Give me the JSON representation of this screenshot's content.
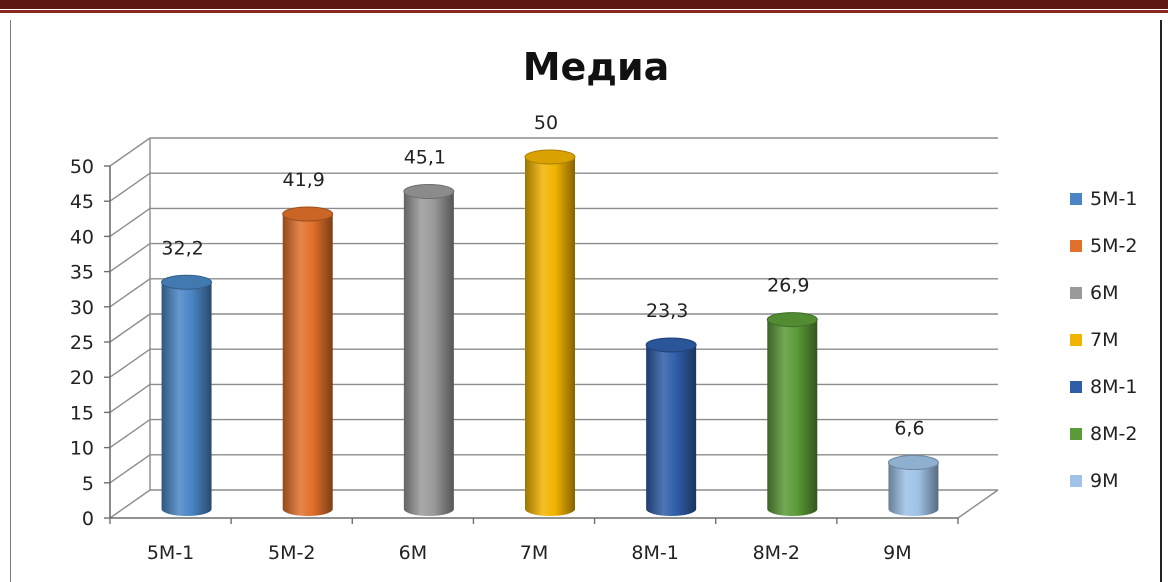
{
  "chart_data": {
    "type": "bar",
    "title": "Медиа",
    "categories": [
      "5М-1",
      "5М-2",
      "6М",
      "7М",
      "8М-1",
      "8М-2",
      "9М"
    ],
    "values": [
      32.2,
      41.9,
      45.1,
      50,
      23.3,
      26.9,
      6.6
    ],
    "value_labels": [
      "32,2",
      "41,9",
      "45,1",
      "50",
      "23,3",
      "26,9",
      "6,6"
    ],
    "colors": [
      "#4a86c5",
      "#e0702a",
      "#9a9a9a",
      "#f2b400",
      "#2f5ea9",
      "#5a9a37",
      "#9fc2e6"
    ],
    "ylim": [
      0,
      50
    ],
    "yticks": [
      "0",
      "5",
      "10",
      "15",
      "20",
      "25",
      "30",
      "35",
      "40",
      "45",
      "50"
    ],
    "legend": [
      "5М-1",
      "5М-2",
      "6М",
      "7М",
      "8М-1",
      "8М-2",
      "9М"
    ],
    "legend_position": "right",
    "grid": true,
    "style": "3d-cylinder"
  }
}
